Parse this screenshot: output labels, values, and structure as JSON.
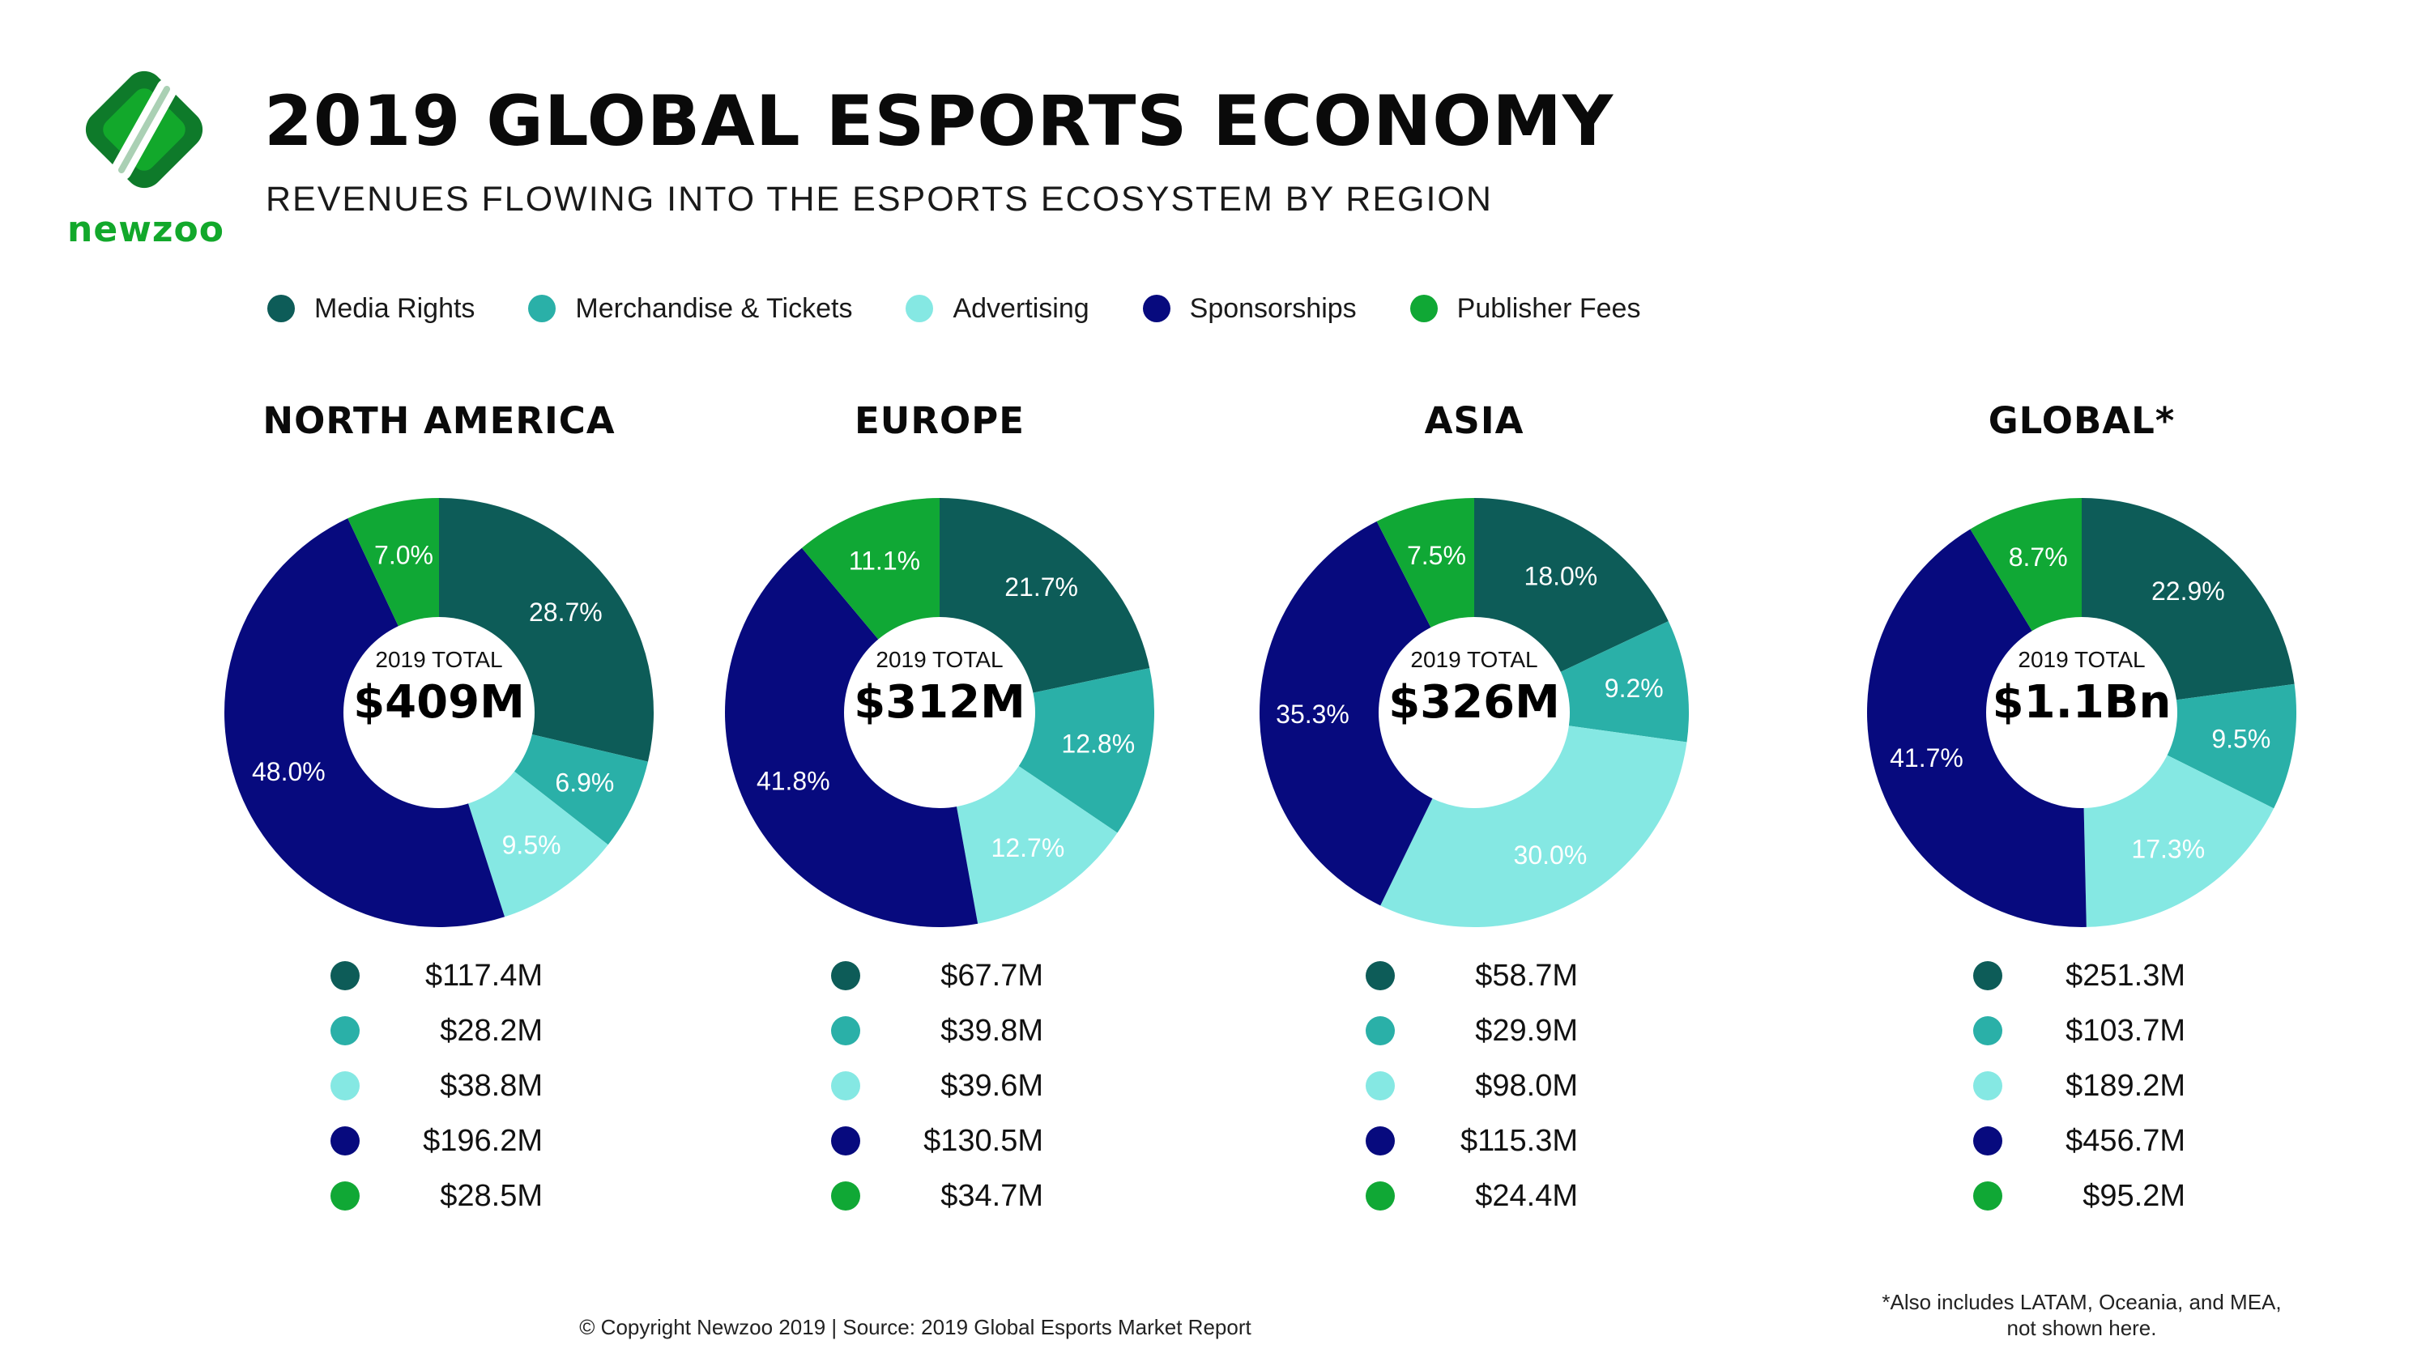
{
  "brand": {
    "name": "newzoo",
    "color_dark": "#0e7a2a",
    "color_light": "#12a82b"
  },
  "title": "2019 GLOBAL ESPORTS ECONOMY",
  "subtitle": "REVENUES FLOWING INTO THE ESPORTS ECOSYSTEM BY REGION",
  "legend": [
    {
      "label": "Media Rights",
      "color": "#0d5c58"
    },
    {
      "label": "Merchandise & Tickets",
      "color": "#2ab0a8"
    },
    {
      "label": "Advertising",
      "color": "#85e8e3"
    },
    {
      "label": "Sponsorships",
      "color": "#070a7e"
    },
    {
      "label": "Publisher Fees",
      "color": "#10a835"
    }
  ],
  "chart_data": [
    {
      "type": "pie",
      "title": "NORTH AMERICA",
      "center_label": "2019 TOTAL",
      "center_value": "$409M",
      "categories": [
        "Media Rights",
        "Merchandise & Tickets",
        "Advertising",
        "Sponsorships",
        "Publisher Fees"
      ],
      "values": [
        28.7,
        6.9,
        9.5,
        48.0,
        7.0
      ],
      "percent_labels": [
        "28.7%",
        "6.9%",
        "9.5%",
        "48.0%",
        "7.0%"
      ],
      "revenue_labels": [
        "$117.4M",
        "$28.2M",
        "$38.8M",
        "$196.2M",
        "$28.5M"
      ]
    },
    {
      "type": "pie",
      "title": "EUROPE",
      "center_label": "2019 TOTAL",
      "center_value": "$312M",
      "categories": [
        "Media Rights",
        "Merchandise & Tickets",
        "Advertising",
        "Sponsorships",
        "Publisher Fees"
      ],
      "values": [
        21.7,
        12.8,
        12.7,
        41.8,
        11.1
      ],
      "percent_labels": [
        "21.7%",
        "12.8%",
        "12.7%",
        "41.8%",
        "11.1%"
      ],
      "revenue_labels": [
        "$67.7M",
        "$39.8M",
        "$39.6M",
        "$130.5M",
        "$34.7M"
      ]
    },
    {
      "type": "pie",
      "title": "ASIA",
      "center_label": "2019 TOTAL",
      "center_value": "$326M",
      "categories": [
        "Media Rights",
        "Merchandise & Tickets",
        "Advertising",
        "Sponsorships",
        "Publisher Fees"
      ],
      "values": [
        18.0,
        9.2,
        30.0,
        35.3,
        7.5
      ],
      "percent_labels": [
        "18.0%",
        "9.2%",
        "30.0%",
        "35.3%",
        "7.5%"
      ],
      "revenue_labels": [
        "$58.7M",
        "$29.9M",
        "$98.0M",
        "$115.3M",
        "$24.4M"
      ]
    },
    {
      "type": "pie",
      "title": "GLOBAL*",
      "center_label": "2019 TOTAL",
      "center_value": "$1.1Bn",
      "categories": [
        "Media Rights",
        "Merchandise & Tickets",
        "Advertising",
        "Sponsorships",
        "Publisher Fees"
      ],
      "values": [
        22.9,
        9.5,
        17.3,
        41.7,
        8.7
      ],
      "percent_labels": [
        "22.9%",
        "9.5%",
        "17.3%",
        "41.7%",
        "8.7%"
      ],
      "revenue_labels": [
        "$251.3M",
        "$103.7M",
        "$189.2M",
        "$456.7M",
        "$95.2M"
      ]
    }
  ],
  "footer": {
    "copyright": "© Copyright Newzoo 2019 | Source: 2019 Global Esports Market Report",
    "footnote_line1": "*Also includes LATAM, Oceania, and MEA,",
    "footnote_line2": "not shown here."
  }
}
